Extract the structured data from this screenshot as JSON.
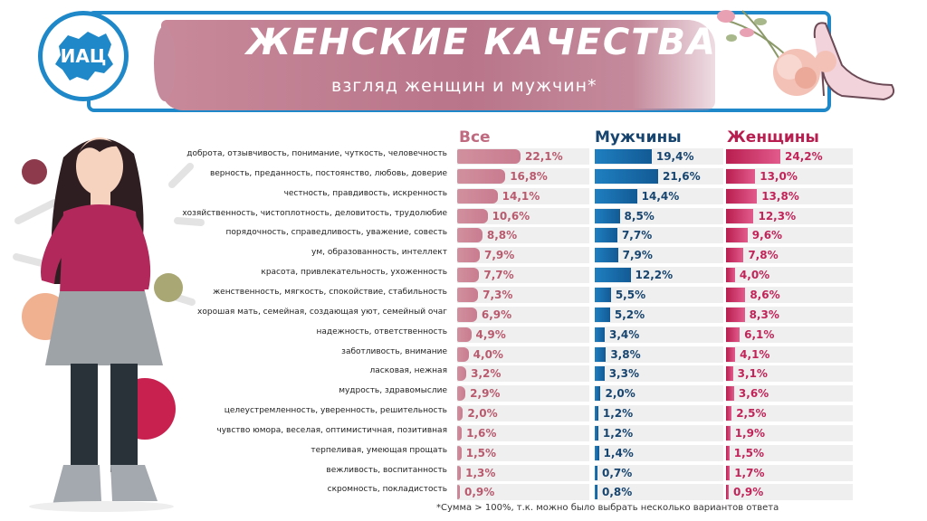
{
  "header": {
    "title": "ЖЕНСКИЕ КАЧЕСТВА:",
    "subtitle": "взгляд женщин и мужчин*",
    "logo_text": "ИАЦ"
  },
  "footnote": "*Сумма  > 100%, т.к. можно было выбрать несколько вариантов ответа",
  "colors": {
    "frame": "#1e88c8",
    "all": "#c97c8f",
    "men": "#1a6aa8",
    "women": "#d6336c",
    "header_brush": "#b9758a"
  },
  "chart_data": {
    "type": "bar",
    "orientation": "horizontal",
    "unit": "%",
    "categories": [
      "доброта, отзывчивость, понимание, чуткость, человечность",
      "верность, преданность, постоянство, любовь, доверие",
      "честность, правдивость, искренность",
      "хозяйственность, чистоплотность, деловитость, трудолюбие",
      "порядочность, справедливость, уважение, совесть",
      "ум, образованность, интеллект",
      "красота, привлекательность, ухоженность",
      "женственность, мягкость, спокойствие, стабильность",
      "хорошая мать, семейная, создающая уют, семейный очаг",
      "надежность, ответственность",
      "заботливость, внимание",
      "ласковая, нежная",
      "мудрость, здравомыслие",
      "целеустремленность, уверенность, решительность",
      "чувство юмора, веселая, оптимистичная, позитивная",
      "терпеливая, умеющая прощать",
      "вежливость, воспитанность",
      "скромность, покладистость"
    ],
    "series": [
      {
        "name": "Все",
        "values": [
          22.1,
          16.8,
          14.1,
          10.6,
          8.8,
          7.9,
          7.7,
          7.3,
          6.9,
          4.9,
          4.0,
          3.2,
          2.9,
          2.0,
          1.6,
          1.5,
          1.3,
          0.9
        ],
        "labels": [
          "22,1%",
          "16,8%",
          "14,1%",
          "10,6%",
          "8,8%",
          "7,9%",
          "7,7%",
          "7,3%",
          "6,9%",
          "4,9%",
          "4,0%",
          "3,2%",
          "2,9%",
          "2,0%",
          "1,6%",
          "1,5%",
          "1,3%",
          "0,9%"
        ]
      },
      {
        "name": "Мужчины",
        "values": [
          19.4,
          21.6,
          14.4,
          8.5,
          7.7,
          7.9,
          12.2,
          5.5,
          5.2,
          3.4,
          3.8,
          3.3,
          2.0,
          1.2,
          1.2,
          1.4,
          0.7,
          0.8
        ],
        "labels": [
          "19,4%",
          "21,6%",
          "14,4%",
          "8,5%",
          "7,7%",
          "7,9%",
          "12,2%",
          "5,5%",
          "5,2%",
          "3,4%",
          "3,8%",
          "3,3%",
          "2,0%",
          "1,2%",
          "1,2%",
          "1,4%",
          "0,7%",
          "0,8%"
        ]
      },
      {
        "name": "Женщины",
        "values": [
          24.2,
          13.0,
          13.8,
          12.3,
          9.6,
          7.8,
          4.0,
          8.6,
          8.3,
          6.1,
          4.1,
          3.1,
          3.6,
          2.5,
          1.9,
          1.5,
          1.7,
          0.9
        ],
        "labels": [
          "24,2%",
          "13,0%",
          "13,8%",
          "12,3%",
          "9,6%",
          "7,8%",
          "4,0%",
          "8,6%",
          "8,3%",
          "6,1%",
          "4,1%",
          "3,1%",
          "3,6%",
          "2,5%",
          "1,9%",
          "1,5%",
          "1,7%",
          "0,9%"
        ]
      }
    ]
  }
}
